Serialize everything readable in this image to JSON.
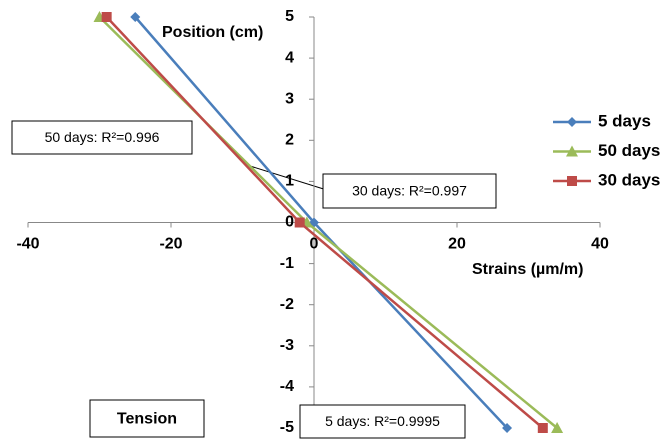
{
  "chart_data": {
    "type": "line",
    "y_label": "Position (cm)",
    "x_label": "Strains (µm/m)",
    "xlim": [
      -40,
      40
    ],
    "xticks": [
      -40,
      -20,
      0,
      20,
      40
    ],
    "ylim": [
      -5,
      5
    ],
    "yticks": [
      -5,
      -4,
      -3,
      -2,
      -1,
      0,
      1,
      2,
      3,
      4,
      5
    ],
    "legend": "right",
    "series": [
      {
        "name": "5 days",
        "color": "#4a7ebb",
        "marker": "diamond",
        "x": [
          -25,
          0,
          27
        ],
        "values": [
          5,
          0,
          -5
        ]
      },
      {
        "name": "50 days",
        "color": "#9bbb59",
        "marker": "triangle",
        "x": [
          -30,
          -1,
          34
        ],
        "values": [
          5,
          0,
          -5
        ]
      },
      {
        "name": "30 days",
        "color": "#be4b48",
        "marker": "square",
        "x": [
          -29,
          -2,
          32
        ],
        "values": [
          5,
          0,
          -5
        ]
      }
    ],
    "annotations": [
      {
        "text": "50 days: R²=0.996"
      },
      {
        "text": "30 days: R²=0.997"
      },
      {
        "text": "5 days: R²=0.9995"
      },
      {
        "text": "Tension"
      }
    ]
  }
}
